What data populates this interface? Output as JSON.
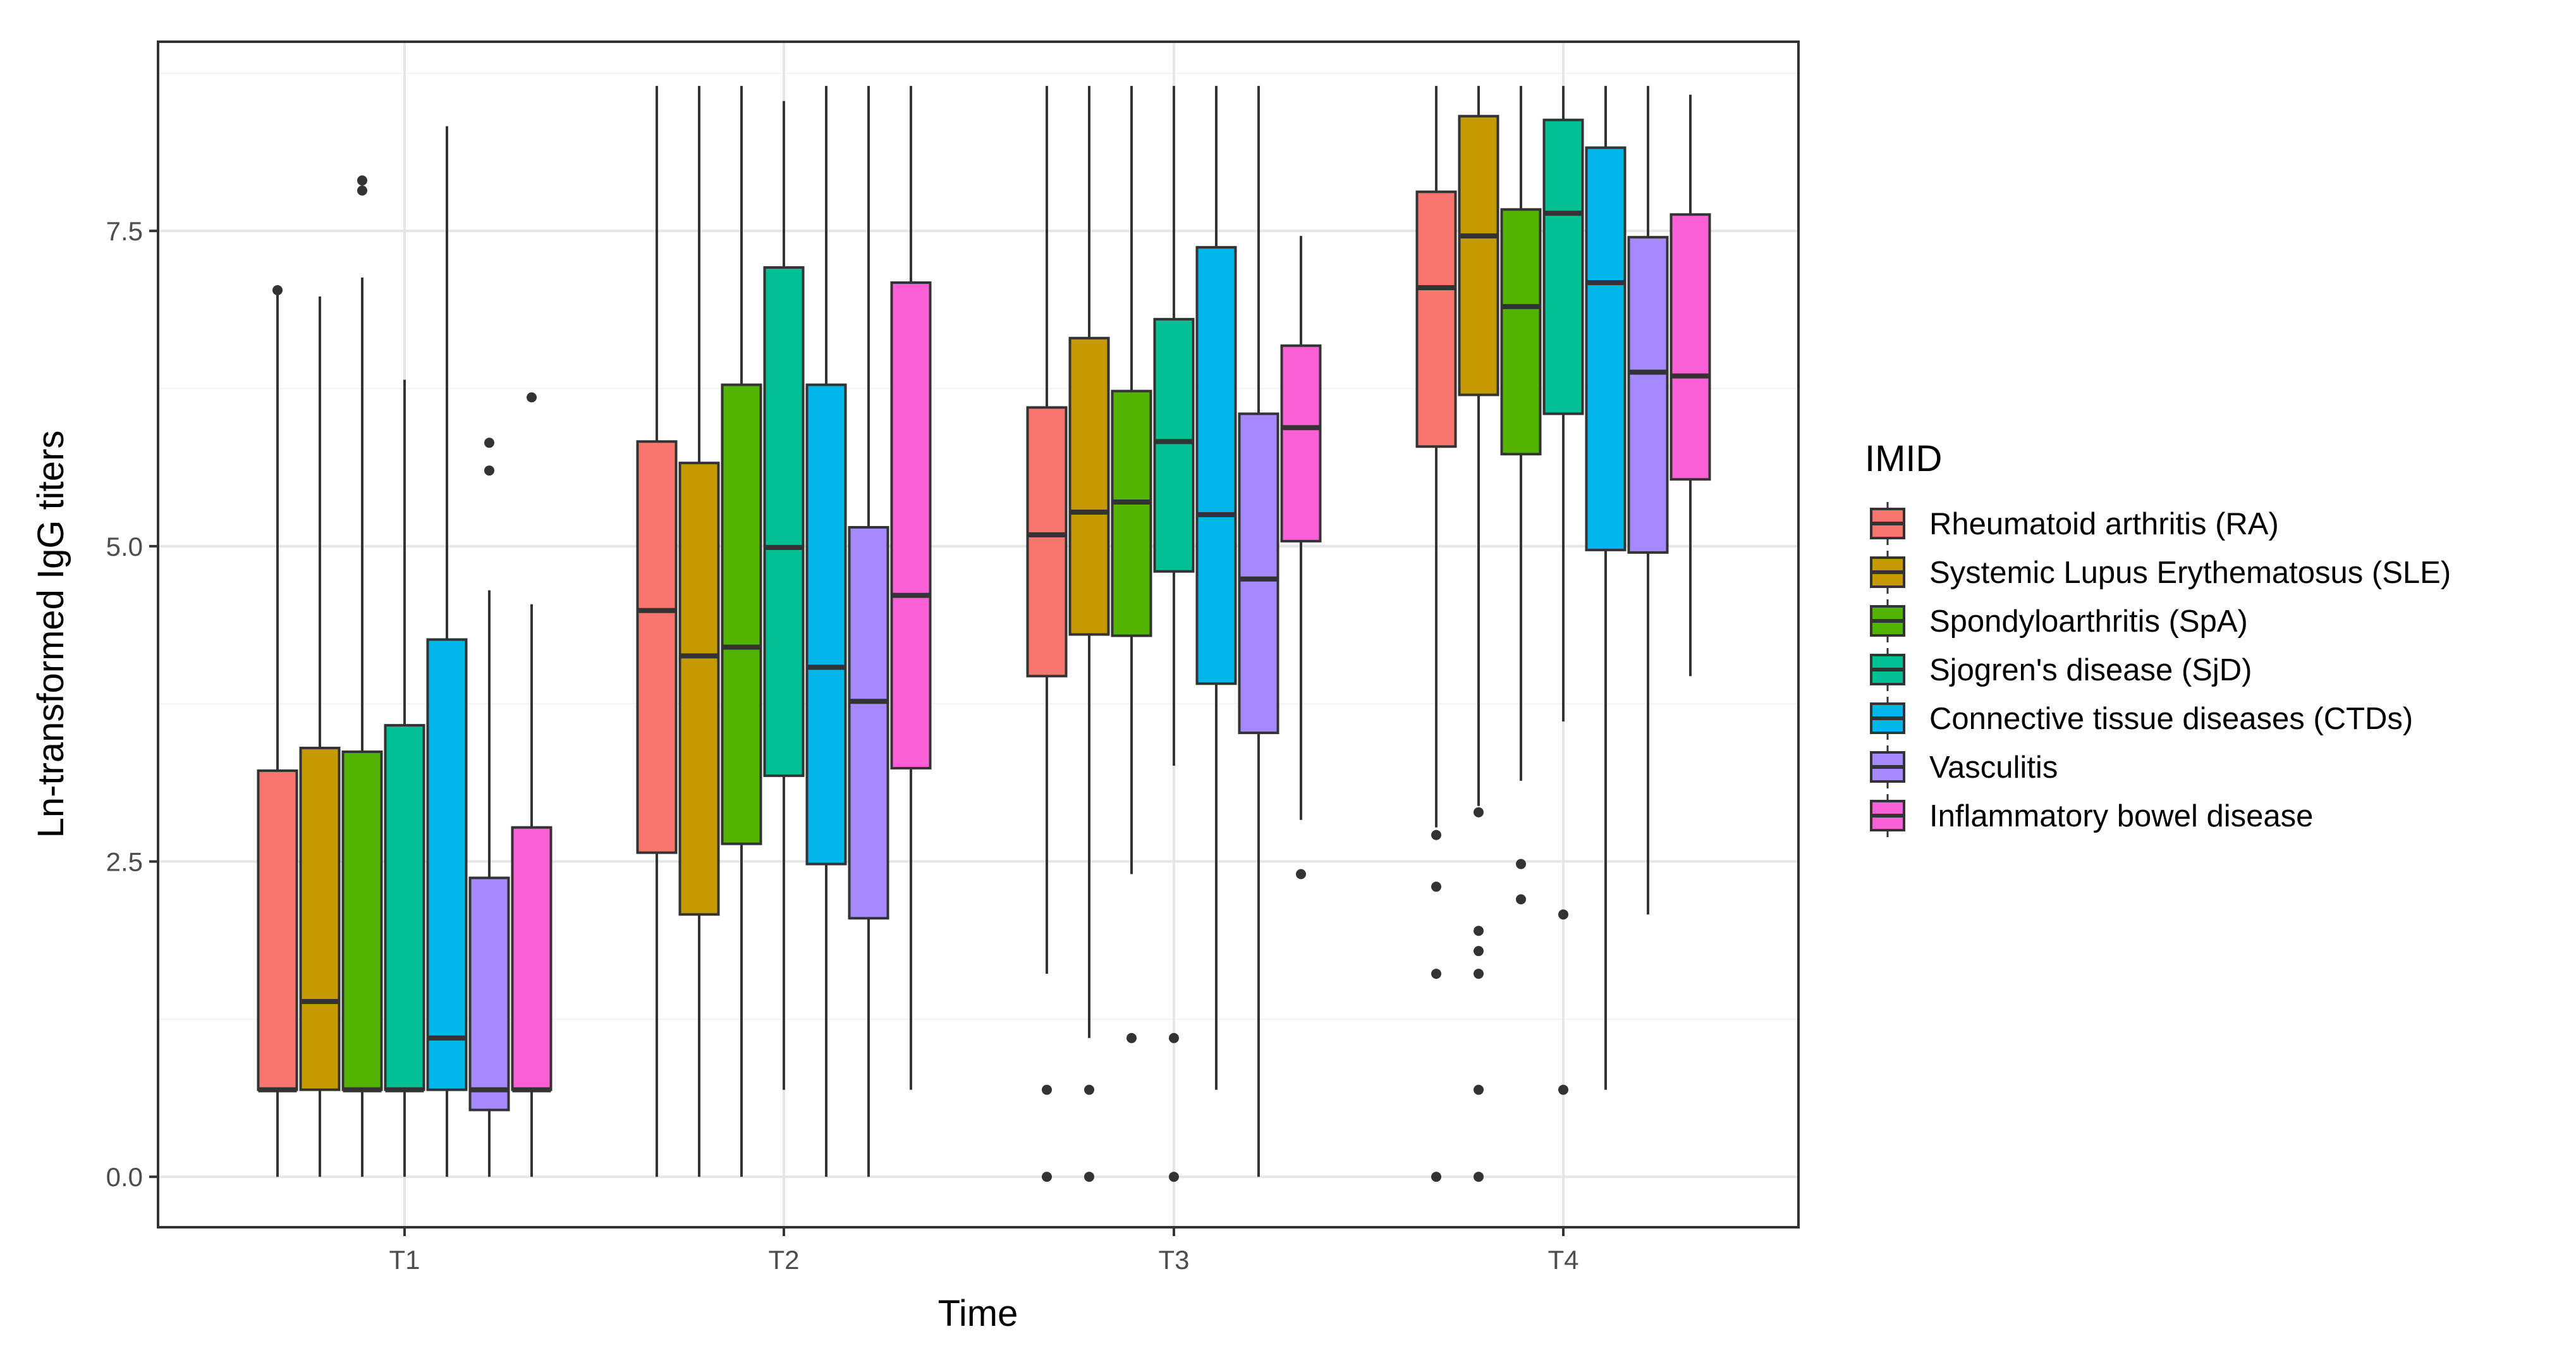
{
  "chart_data": {
    "type": "boxplot",
    "title": "",
    "xlabel": "Time",
    "ylabel": "Ln-transformed IgG titers",
    "ylim": [
      -0.4,
      9.0
    ],
    "yticks": [
      0.0,
      2.5,
      5.0,
      7.5
    ],
    "ytick_labels": [
      "0.0",
      "2.5",
      "5.0",
      "7.5"
    ],
    "categories": [
      "T1",
      "T2",
      "T3",
      "T4"
    ],
    "legend_title": "IMID",
    "legend_position": "right",
    "grid": true,
    "series": [
      {
        "name": "Rheumatoid arthritis (RA)",
        "color": "#F8766D",
        "boxes": [
          {
            "whisker_low": 0.0,
            "q1": 0.69,
            "median": 0.69,
            "q3": 3.22,
            "whisker_high": 7.0,
            "outliers": [
              7.03
            ]
          },
          {
            "whisker_low": 0.0,
            "q1": 2.57,
            "median": 4.49,
            "q3": 5.83,
            "whisker_high": 8.65,
            "outliers": []
          },
          {
            "whisker_low": 1.61,
            "q1": 3.97,
            "median": 5.09,
            "q3": 6.1,
            "whisker_high": 8.65,
            "outliers": [
              0.69,
              0.0
            ]
          },
          {
            "whisker_low": 2.77,
            "q1": 5.79,
            "median": 7.05,
            "q3": 7.81,
            "whisker_high": 8.65,
            "outliers": [
              2.71,
              2.3,
              1.61,
              0.0
            ]
          }
        ]
      },
      {
        "name": "Systemic Lupus Erythematosus (SLE)",
        "color": "#C49A00",
        "boxes": [
          {
            "whisker_low": 0.0,
            "q1": 0.69,
            "median": 1.39,
            "q3": 3.4,
            "whisker_high": 6.98,
            "outliers": []
          },
          {
            "whisker_low": 0.0,
            "q1": 2.08,
            "median": 4.13,
            "q3": 5.66,
            "whisker_high": 8.65,
            "outliers": []
          },
          {
            "whisker_low": 1.1,
            "q1": 4.3,
            "median": 5.27,
            "q3": 6.65,
            "whisker_high": 8.65,
            "outliers": [
              0.69,
              0.0
            ]
          },
          {
            "whisker_low": 2.94,
            "q1": 6.2,
            "median": 7.46,
            "q3": 8.41,
            "whisker_high": 8.65,
            "outliers": [
              2.89,
              1.95,
              1.79,
              1.61,
              0.69,
              0.0
            ]
          }
        ]
      },
      {
        "name": "Spondyloarthritis (SpA)",
        "color": "#53B400",
        "boxes": [
          {
            "whisker_low": 0.0,
            "q1": 0.69,
            "median": 0.69,
            "q3": 3.37,
            "whisker_high": 7.13,
            "outliers": [
              7.9,
              7.82
            ]
          },
          {
            "whisker_low": 0.0,
            "q1": 2.64,
            "median": 4.2,
            "q3": 6.28,
            "whisker_high": 8.65,
            "outliers": []
          },
          {
            "whisker_low": 2.4,
            "q1": 4.29,
            "median": 5.35,
            "q3": 6.23,
            "whisker_high": 8.65,
            "outliers": [
              1.1
            ]
          },
          {
            "whisker_low": 3.14,
            "q1": 5.73,
            "median": 6.9,
            "q3": 7.67,
            "whisker_high": 8.65,
            "outliers": [
              2.48,
              2.2
            ]
          }
        ]
      },
      {
        "name": "Sjogren's disease (SjD)",
        "color": "#00C094",
        "boxes": [
          {
            "whisker_low": 0.0,
            "q1": 0.69,
            "median": 0.69,
            "q3": 3.58,
            "whisker_high": 6.32,
            "outliers": []
          },
          {
            "whisker_low": 0.69,
            "q1": 3.18,
            "median": 4.99,
            "q3": 7.21,
            "whisker_high": 8.53,
            "outliers": []
          },
          {
            "whisker_low": 3.26,
            "q1": 4.8,
            "median": 5.83,
            "q3": 6.8,
            "whisker_high": 8.65,
            "outliers": [
              1.1,
              0.0
            ]
          },
          {
            "whisker_low": 3.61,
            "q1": 6.05,
            "median": 7.64,
            "q3": 8.38,
            "whisker_high": 8.65,
            "outliers": [
              2.08,
              0.69
            ]
          }
        ]
      },
      {
        "name": "Connective tissue diseases (CTDs)",
        "color": "#00B6EB",
        "boxes": [
          {
            "whisker_low": 0.0,
            "q1": 0.69,
            "median": 1.1,
            "q3": 4.26,
            "whisker_high": 8.33,
            "outliers": []
          },
          {
            "whisker_low": 0.0,
            "q1": 2.48,
            "median": 4.04,
            "q3": 6.28,
            "whisker_high": 8.65,
            "outliers": []
          },
          {
            "whisker_low": 0.69,
            "q1": 3.91,
            "median": 5.25,
            "q3": 7.37,
            "whisker_high": 8.65,
            "outliers": []
          },
          {
            "whisker_low": 0.69,
            "q1": 4.97,
            "median": 7.09,
            "q3": 8.16,
            "whisker_high": 8.65,
            "outliers": []
          }
        ]
      },
      {
        "name": "Vasculitis",
        "color": "#A58AFF",
        "boxes": [
          {
            "whisker_low": 0.0,
            "q1": 0.53,
            "median": 0.69,
            "q3": 2.37,
            "whisker_high": 4.65,
            "outliers": [
              5.82,
              5.6
            ]
          },
          {
            "whisker_low": 0.0,
            "q1": 2.05,
            "median": 3.77,
            "q3": 5.15,
            "whisker_high": 8.65,
            "outliers": []
          },
          {
            "whisker_low": 0.0,
            "q1": 3.52,
            "median": 4.74,
            "q3": 6.05,
            "whisker_high": 8.65,
            "outliers": []
          },
          {
            "whisker_low": 2.08,
            "q1": 4.95,
            "median": 6.38,
            "q3": 7.45,
            "whisker_high": 8.65,
            "outliers": []
          }
        ]
      },
      {
        "name": "Inflammatory bowel disease",
        "color": "#FB61D7",
        "boxes": [
          {
            "whisker_low": 0.0,
            "q1": 0.69,
            "median": 0.69,
            "q3": 2.77,
            "whisker_high": 4.54,
            "outliers": [
              6.18
            ]
          },
          {
            "whisker_low": 0.69,
            "q1": 3.24,
            "median": 4.61,
            "q3": 7.09,
            "whisker_high": 8.65,
            "outliers": []
          },
          {
            "whisker_low": 2.83,
            "q1": 5.04,
            "median": 5.94,
            "q3": 6.59,
            "whisker_high": 7.46,
            "outliers": [
              2.4
            ]
          },
          {
            "whisker_low": 3.97,
            "q1": 5.53,
            "median": 6.35,
            "q3": 7.63,
            "whisker_high": 8.58,
            "outliers": []
          }
        ]
      }
    ]
  }
}
